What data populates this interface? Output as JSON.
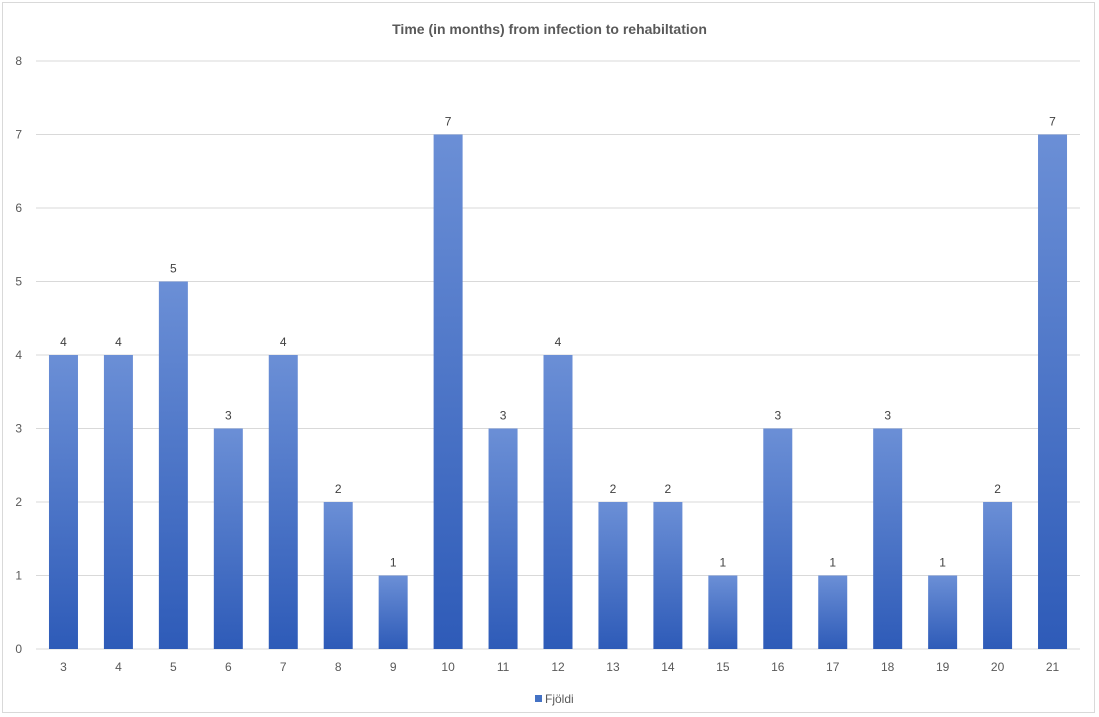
{
  "chart_data": {
    "type": "bar",
    "title": "Time (in months) from infection to rehabiltation",
    "xlabel": "",
    "ylabel": "",
    "categories": [
      "3",
      "4",
      "5",
      "6",
      "7",
      "8",
      "9",
      "10",
      "11",
      "12",
      "13",
      "14",
      "15",
      "16",
      "17",
      "18",
      "19",
      "20",
      "21"
    ],
    "series": [
      {
        "name": "Fjöldi",
        "values": [
          4,
          4,
          5,
          3,
          4,
          2,
          1,
          7,
          3,
          4,
          2,
          2,
          1,
          3,
          1,
          3,
          1,
          2,
          7
        ]
      }
    ],
    "ylim": [
      0,
      8
    ],
    "yticks": [
      0,
      1,
      2,
      3,
      4,
      5,
      6,
      7,
      8
    ],
    "grid": true,
    "legend": "bottom",
    "data_labels": true,
    "colors": {
      "bar_top": "#6b8fd6",
      "bar_bottom": "#2e5bb8",
      "grid": "#d9d9d9",
      "text": "#595959",
      "legend_swatch": "#4472c4"
    }
  }
}
